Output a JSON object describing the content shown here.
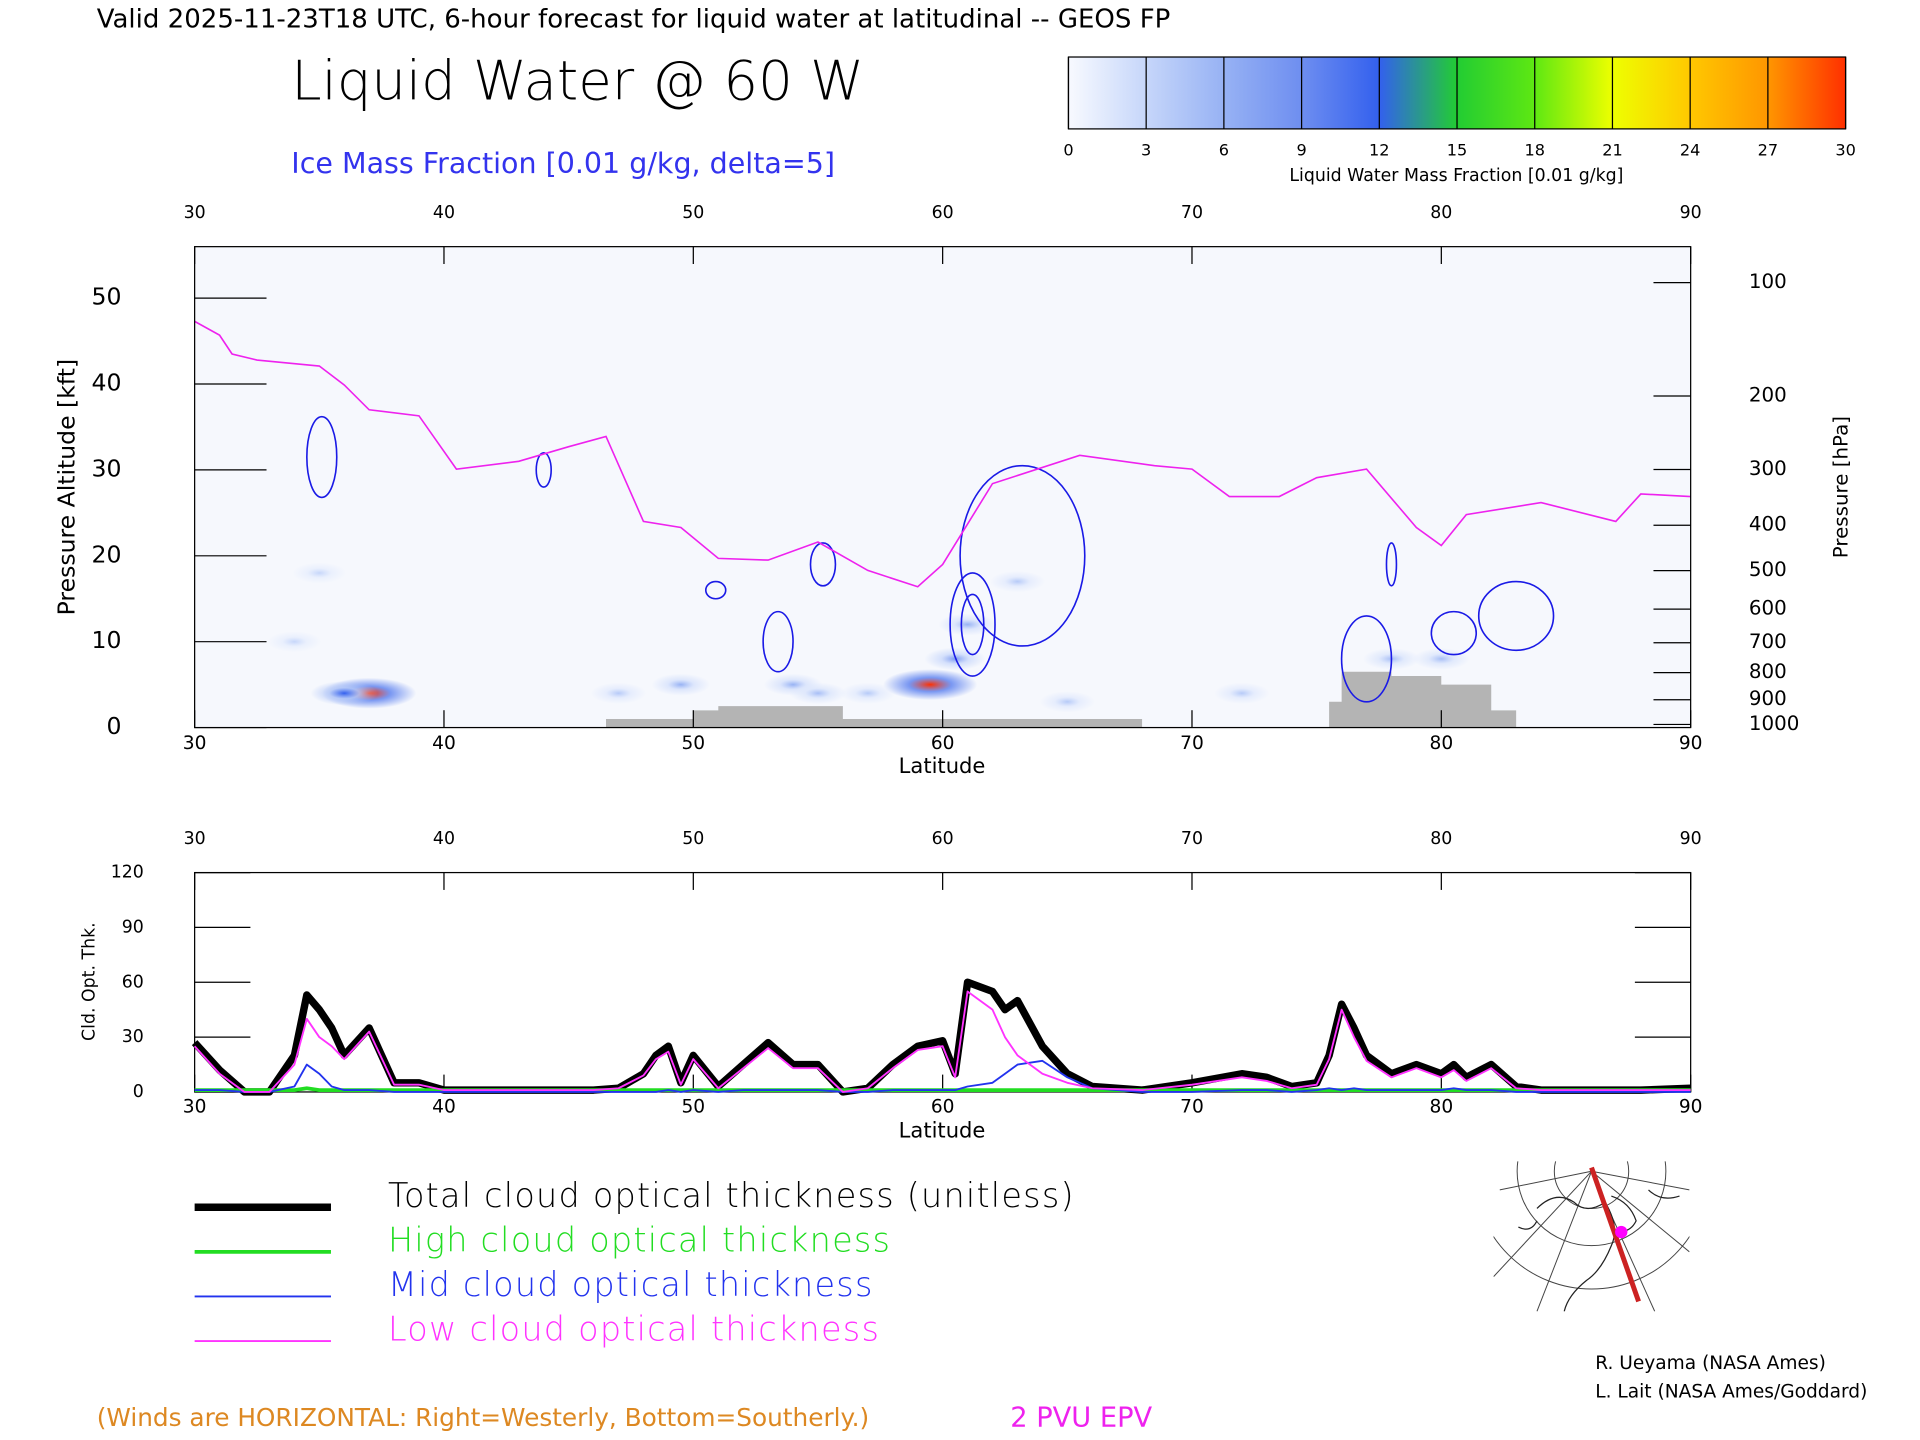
{
  "chart_data": [
    {
      "type": "cross-section",
      "header": "Valid 2025-11-23T18 UTC, 6-hour forecast for liquid water at latitudinal -- GEOS FP",
      "title": "Liquid Water @ 60 W",
      "subtitle": "Ice Mass Fraction [0.01 g/kg, delta=5]",
      "xlabel": "Latitude",
      "ylabel": "Pressure Altitude [kft]",
      "y2label": "Pressure [hPa]",
      "xlim": [
        30,
        90
      ],
      "xticks": [
        30,
        40,
        50,
        60,
        70,
        80,
        90
      ],
      "ylim": [
        0,
        56
      ],
      "yticks": [
        0,
        10,
        20,
        30,
        40,
        50
      ],
      "y2scale": "pressure-altitude",
      "y2ticks": [
        100,
        200,
        300,
        400,
        500,
        600,
        700,
        800,
        900,
        1000
      ],
      "colorbar": {
        "label": "Liquid Water Mass Fraction [0.01 g/kg]",
        "ticks": [
          0,
          3,
          6,
          9,
          12,
          15,
          18,
          21,
          24,
          27,
          30
        ],
        "colors": [
          "#f8faff",
          "#c6d6fa",
          "#97b2f4",
          "#6e8ef0",
          "#3360ee",
          "#22cc33",
          "#5ee812",
          "#eeff00",
          "#ffc800",
          "#ff9600",
          "#ff3000"
        ]
      },
      "liquid_water": {
        "x": [
          37,
          36,
          35,
          34,
          59.5,
          60.5,
          61,
          63,
          49.5,
          54,
          55,
          78,
          80,
          72,
          65,
          47,
          57
        ],
        "y": [
          4,
          4,
          18,
          10,
          5,
          8,
          12,
          17,
          5,
          5,
          4,
          8,
          8,
          4,
          3,
          4,
          4
        ],
        "values": [
          30,
          12,
          3,
          3,
          30,
          8,
          6,
          4,
          6,
          6,
          5,
          5,
          5,
          4,
          4,
          4,
          4
        ]
      },
      "ice_contours": {
        "color": "#1a1ae6",
        "x": [
          35.1,
          44,
          55.2,
          63.2,
          61.2,
          61.2,
          53.4,
          50.9,
          77,
          78,
          80.5,
          83
        ],
        "y": [
          31.5,
          30,
          19,
          20,
          12,
          12,
          10,
          16,
          8,
          19,
          11,
          13
        ],
        "width": [
          1.2,
          0.6,
          1,
          5,
          1.8,
          0.9,
          1.2,
          0.8,
          2,
          0.4,
          1.8,
          3
        ],
        "height": [
          9.4,
          4,
          5,
          21,
          12,
          7,
          7,
          2,
          10,
          5,
          5,
          8
        ],
        "values": [
          5,
          5,
          5,
          5,
          10,
          15,
          5,
          5,
          5,
          5,
          5,
          5
        ]
      },
      "terrain": {
        "color": "#b4b4b4",
        "x": [
          46.5,
          46.5,
          50,
          50,
          51,
          51,
          56,
          56,
          58,
          58,
          68,
          68,
          75.5,
          75.5,
          76,
          76,
          78,
          78,
          80,
          80,
          82,
          82,
          83,
          83
        ],
        "y": [
          0,
          1,
          1,
          2,
          2,
          2.5,
          2.5,
          1,
          1,
          1,
          1,
          0,
          0,
          3,
          3,
          6.5,
          6.5,
          6,
          6,
          5,
          5,
          2,
          2,
          0
        ]
      },
      "series": [
        {
          "name": "2 PVU EPV",
          "color": "#ee22ee",
          "x": [
            30,
            31,
            31.5,
            32.5,
            35,
            36,
            37,
            39,
            40.5,
            43,
            45,
            46.5,
            48,
            49.5,
            51,
            53,
            55,
            57,
            59,
            60,
            62,
            65.5,
            68.5,
            70,
            71.5,
            73.5,
            75,
            77,
            79,
            80,
            81,
            84,
            87,
            88,
            90
          ],
          "values": [
            47.3,
            45.7,
            43.5,
            42.8,
            42.1,
            39.9,
            37,
            36.3,
            30.1,
            31,
            32.7,
            33.9,
            24,
            23.3,
            19.7,
            19.5,
            21.6,
            18.3,
            16.4,
            19,
            28.4,
            31.7,
            30.5,
            30.1,
            26.9,
            26.9,
            29.1,
            30.1,
            23.3,
            21.2,
            24.8,
            26.2,
            24,
            27.2,
            26.9
          ]
        }
      ],
      "note": "(Winds are HORIZONTAL: Right=Westerly, Bottom=Southerly.)",
      "credits": [
        "R. Ueyama (NASA Ames)",
        "L. Lait (NASA Ames/Goddard)"
      ]
    },
    {
      "type": "line",
      "xlabel": "Latitude",
      "ylabel": "Cld. Opt. Thk.",
      "xlim": [
        30,
        90
      ],
      "xticks": [
        30,
        40,
        50,
        60,
        70,
        80,
        90
      ],
      "ylim": [
        0,
        120
      ],
      "yticks": [
        0,
        30,
        60,
        90,
        120
      ],
      "x": [
        30,
        31,
        32,
        33,
        34,
        34.5,
        35,
        35.5,
        36,
        37,
        38,
        39,
        40,
        42,
        44,
        46,
        47,
        48,
        48.5,
        49,
        49.5,
        50,
        51,
        52,
        53,
        54,
        55,
        56,
        57,
        58,
        59,
        60,
        60.5,
        61,
        62,
        62.5,
        63,
        64,
        65,
        66,
        68,
        70,
        72,
        73,
        74,
        75,
        75.5,
        76,
        76.5,
        77,
        78,
        79,
        80,
        80.5,
        81,
        82,
        83,
        84,
        86,
        88,
        90
      ],
      "series": [
        {
          "name": "Total cloud optical thickness (unitless)",
          "color": "#000000",
          "width": 6,
          "values": [
            27,
            12,
            0,
            0,
            20,
            53,
            45,
            35,
            20,
            35,
            5,
            5,
            1,
            1,
            1,
            1,
            2,
            10,
            20,
            25,
            5,
            20,
            3,
            15,
            27,
            15,
            15,
            0,
            2,
            15,
            25,
            28,
            10,
            60,
            55,
            45,
            50,
            25,
            10,
            3,
            1,
            5,
            10,
            8,
            3,
            5,
            20,
            48,
            35,
            20,
            10,
            15,
            10,
            15,
            8,
            15,
            3,
            1,
            1,
            1,
            2
          ]
        },
        {
          "name": "High cloud optical thickness",
          "color": "#22dd22",
          "width": 3,
          "values": [
            1,
            1,
            1,
            1,
            1,
            2,
            1,
            1,
            1,
            1,
            1,
            1,
            1,
            1,
            1,
            1,
            1,
            1,
            1,
            1,
            1,
            1,
            1,
            1,
            1,
            1,
            1,
            1,
            1,
            1,
            1,
            1,
            1,
            1,
            1,
            1,
            1,
            1,
            1,
            1,
            1,
            1,
            1,
            1,
            1,
            1,
            1,
            1,
            1,
            1,
            1,
            1,
            1,
            1,
            1,
            1,
            1,
            1,
            1,
            1,
            1
          ]
        },
        {
          "name": "Mid cloud optical thickness",
          "color": "#2233ee",
          "width": 1.5,
          "values": [
            1,
            1,
            0,
            0,
            3,
            15,
            10,
            3,
            1,
            1,
            0,
            0,
            0,
            0,
            0,
            0,
            0,
            0,
            0,
            1,
            0,
            1,
            0,
            1,
            1,
            1,
            1,
            0,
            0,
            1,
            1,
            1,
            1,
            3,
            5,
            10,
            15,
            17,
            8,
            2,
            0,
            0,
            1,
            1,
            0,
            1,
            2,
            1,
            2,
            1,
            1,
            1,
            1,
            2,
            1,
            1,
            0,
            0,
            0,
            0,
            0
          ]
        },
        {
          "name": "Low cloud optical thickness",
          "color": "#ff33ff",
          "width": 1.5,
          "values": [
            25,
            10,
            0,
            0,
            15,
            40,
            30,
            25,
            18,
            33,
            4,
            4,
            1,
            1,
            1,
            1,
            2,
            9,
            18,
            22,
            4,
            18,
            2,
            13,
            24,
            13,
            13,
            0,
            2,
            13,
            23,
            25,
            8,
            55,
            45,
            30,
            20,
            10,
            5,
            2,
            1,
            4,
            8,
            6,
            2,
            4,
            18,
            45,
            30,
            17,
            8,
            13,
            8,
            12,
            6,
            13,
            2,
            1,
            1,
            1,
            1
          ]
        }
      ]
    }
  ]
}
